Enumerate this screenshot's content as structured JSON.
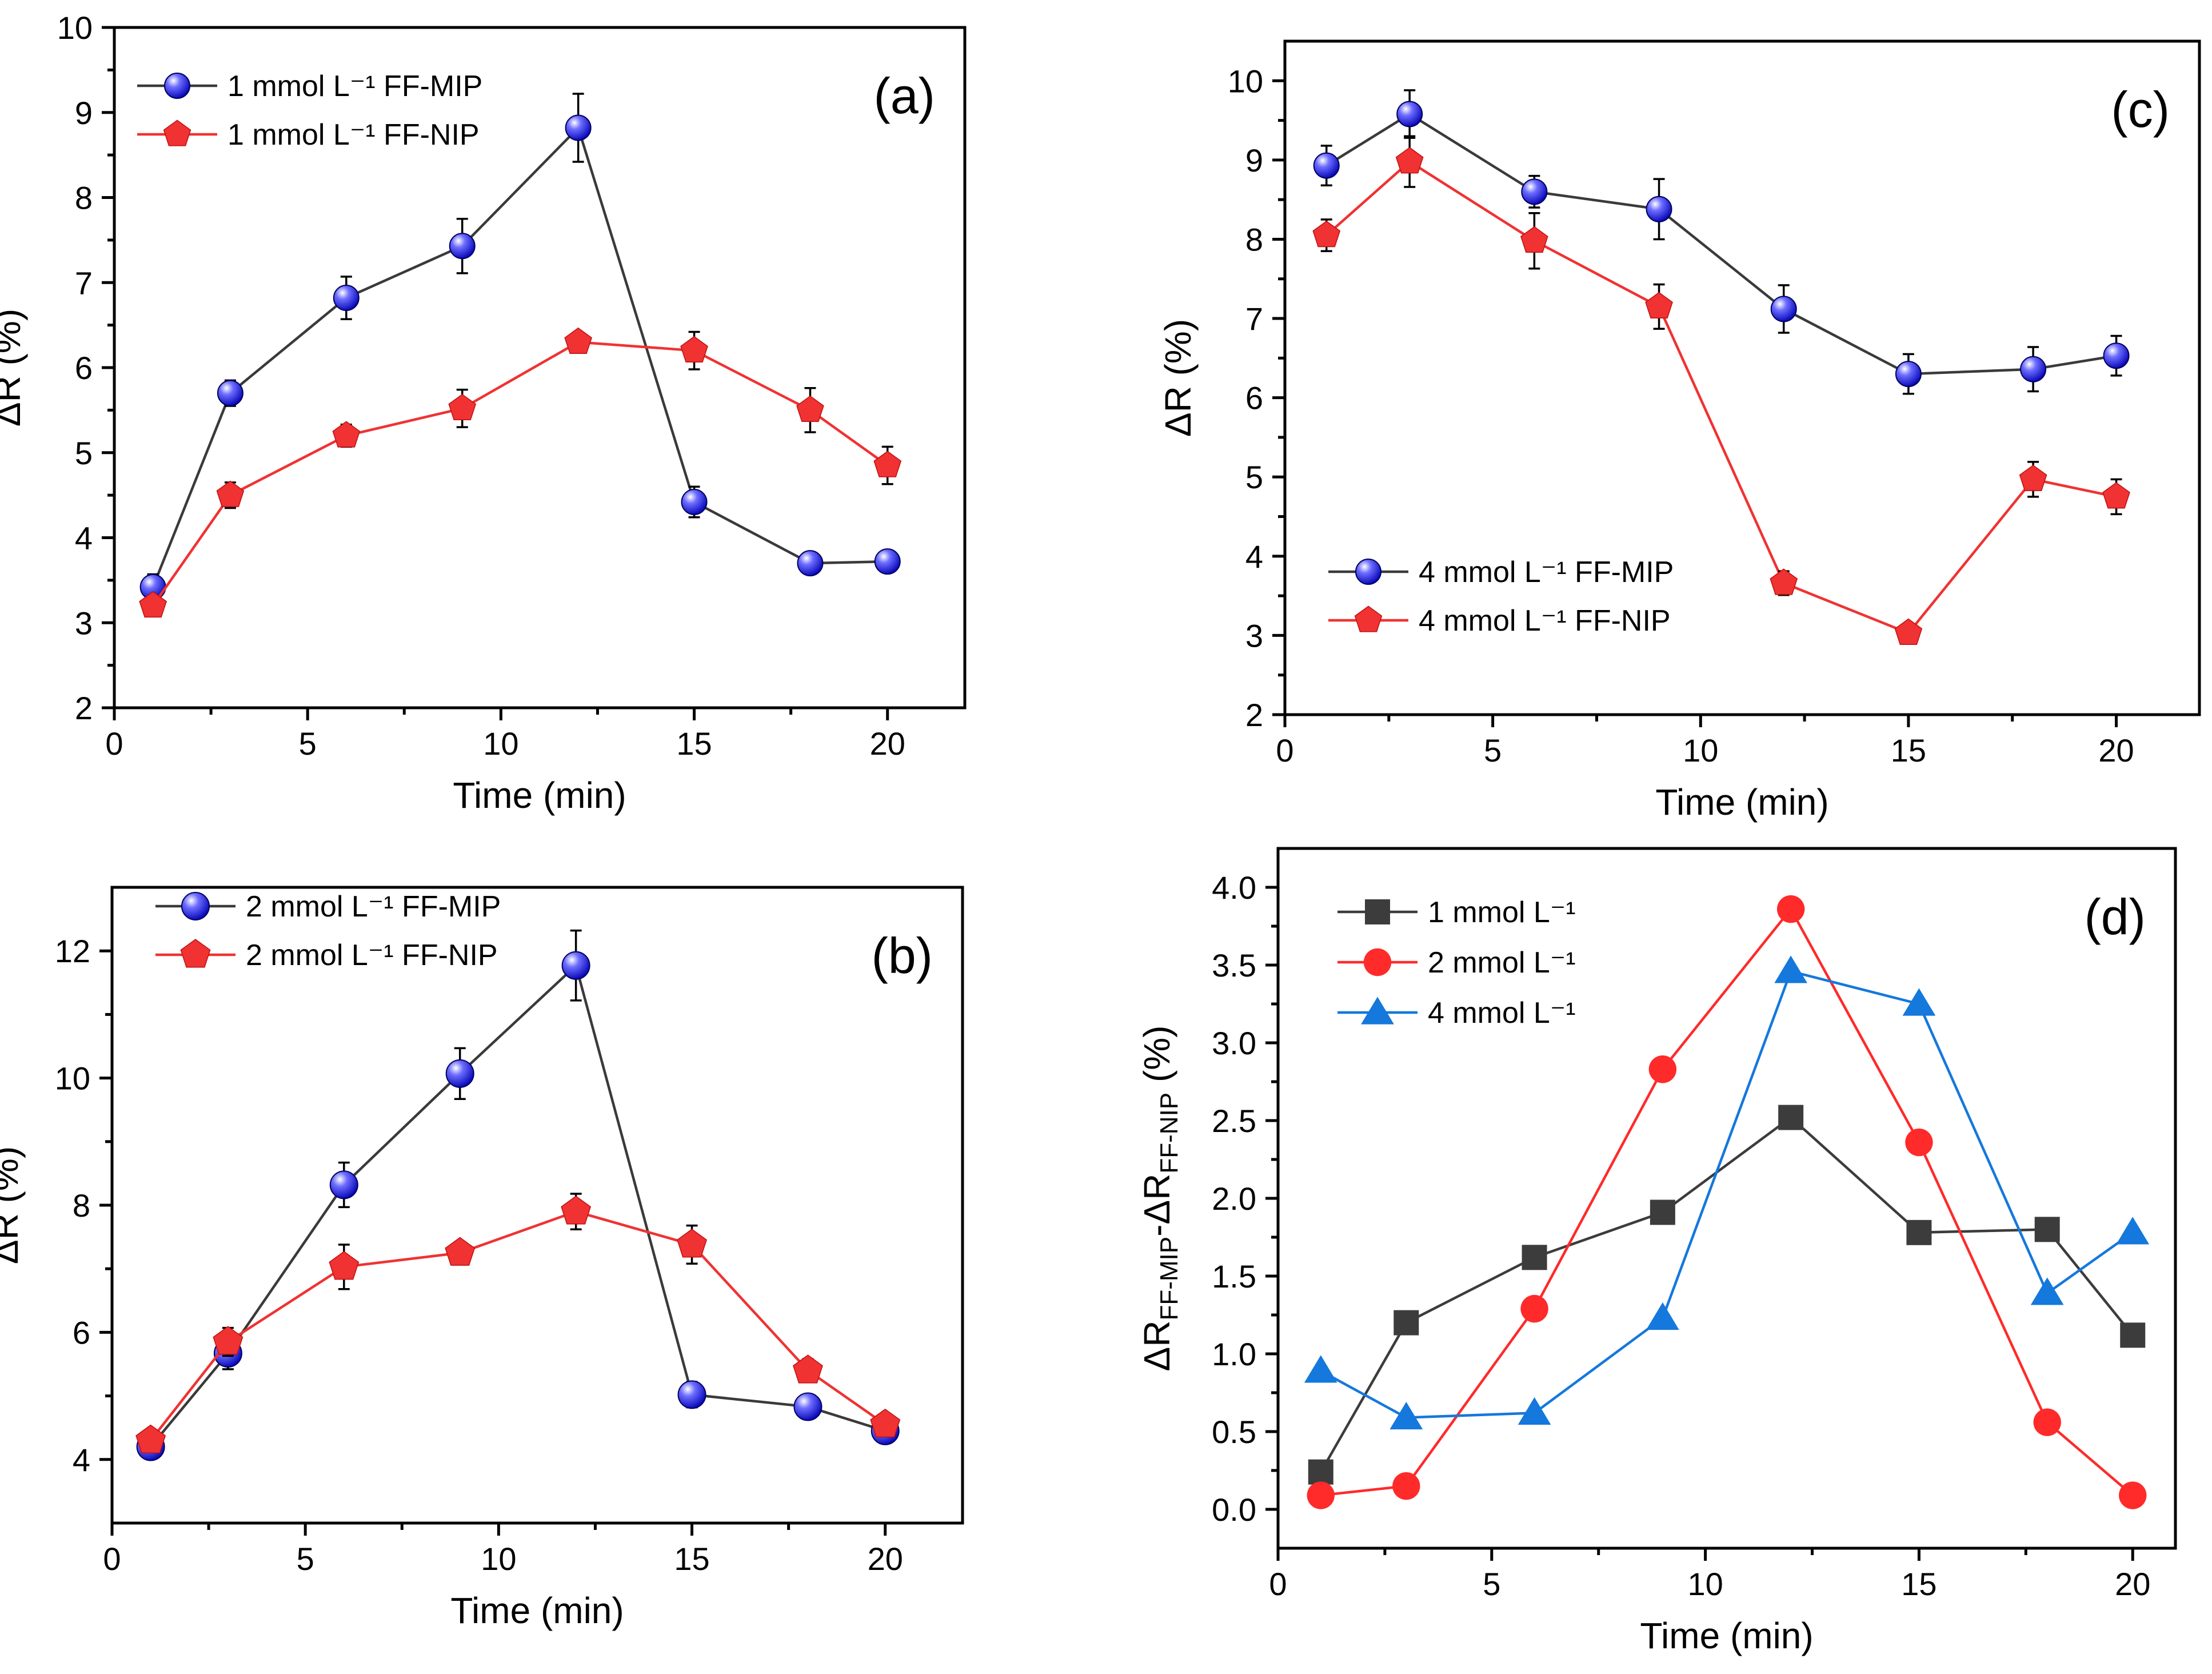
{
  "chart_data": [
    {
      "panel": "(a)",
      "type": "line",
      "xlabel": "Time (min)",
      "ylabel": "ΔR (%)",
      "xlim": [
        0,
        22
      ],
      "ylim": [
        2,
        10
      ],
      "xticks": [
        0,
        5,
        10,
        15,
        20
      ],
      "yticks": [
        2,
        3,
        4,
        5,
        6,
        7,
        8,
        9,
        10
      ],
      "x": [
        1,
        3,
        6,
        9,
        12,
        15,
        18,
        20
      ],
      "series": [
        {
          "name": "1 mmol L⁻¹ FF-MIP",
          "color": "#1414e6",
          "line_color": "#3a3a3a",
          "marker": "sphere",
          "values": [
            3.42,
            5.7,
            6.82,
            7.43,
            8.82,
            4.42,
            3.7,
            3.72
          ],
          "errors": [
            0.15,
            0.15,
            0.25,
            0.32,
            0.4,
            0.18,
            0.08,
            0.1
          ]
        },
        {
          "name": "1 mmol L⁻¹ FF-NIP",
          "color": "#f03232",
          "line_color": "#f03232",
          "marker": "pentagon",
          "values": [
            3.2,
            4.5,
            5.2,
            5.52,
            6.3,
            6.2,
            5.5,
            4.85
          ],
          "errors": [
            0.08,
            0.15,
            0.13,
            0.22,
            0.1,
            0.22,
            0.26,
            0.22
          ]
        }
      ]
    },
    {
      "panel": "(b)",
      "type": "line",
      "xlabel": "Time (min)",
      "ylabel": "ΔR (%)",
      "xlim": [
        0,
        22
      ],
      "ylim": [
        3,
        13
      ],
      "xticks": [
        0,
        5,
        10,
        15,
        20
      ],
      "yticks": [
        4,
        6,
        8,
        10,
        12
      ],
      "x": [
        1,
        3,
        6,
        9,
        12,
        15,
        18,
        20
      ],
      "series": [
        {
          "name": "2 mmol L⁻¹ FF-MIP",
          "color": "#1414e6",
          "line_color": "#3a3a3a",
          "marker": "sphere",
          "values": [
            4.2,
            5.67,
            8.32,
            10.07,
            11.77,
            5.02,
            4.83,
            4.45
          ],
          "errors": [
            0.1,
            0.25,
            0.35,
            0.4,
            0.55,
            0.2,
            0.18,
            0.15
          ]
        },
        {
          "name": "2 mmol L⁻¹ FF-NIP",
          "color": "#f03232",
          "line_color": "#f03232",
          "marker": "pentagon",
          "values": [
            4.3,
            5.85,
            7.03,
            7.25,
            7.9,
            7.38,
            5.4,
            4.55
          ],
          "errors": [
            0.1,
            0.22,
            0.35,
            0.12,
            0.28,
            0.3,
            0.18,
            0.12
          ]
        }
      ]
    },
    {
      "panel": "(c)",
      "type": "line",
      "xlabel": "Time (min)",
      "ylabel": "ΔR (%)",
      "xlim": [
        0,
        22
      ],
      "ylim": [
        2,
        10.5
      ],
      "xticks": [
        0,
        5,
        10,
        15,
        20
      ],
      "yticks": [
        2,
        3,
        4,
        5,
        6,
        7,
        8,
        9,
        10
      ],
      "x": [
        1,
        3,
        6,
        9,
        12,
        15,
        18,
        20
      ],
      "series": [
        {
          "name": "4 mmol L⁻¹ FF-MIP",
          "color": "#1414e6",
          "line_color": "#3a3a3a",
          "marker": "sphere",
          "values": [
            8.93,
            9.58,
            8.6,
            8.38,
            7.12,
            6.3,
            6.36,
            6.53
          ],
          "errors": [
            0.25,
            0.3,
            0.2,
            0.38,
            0.3,
            0.25,
            0.28,
            0.25
          ]
        },
        {
          "name": "4 mmol L⁻¹ FF-NIP",
          "color": "#f03232",
          "line_color": "#f03232",
          "marker": "pentagon",
          "values": [
            8.05,
            8.98,
            7.98,
            7.15,
            3.66,
            3.03,
            4.97,
            4.75
          ],
          "errors": [
            0.2,
            0.32,
            0.35,
            0.28,
            0.15,
            0.12,
            0.22,
            0.22
          ]
        }
      ]
    },
    {
      "panel": "(d)",
      "type": "line",
      "xlabel": "Time (min)",
      "ylabel": "ΔR",
      "ylabel_sub1": "FF-MIP",
      "ylabel_mid": "-ΔR",
      "ylabel_sub2": "FF-NIP",
      "ylabel_tail": " (%)",
      "xlim": [
        0,
        21
      ],
      "ylim": [
        -0.25,
        4.25
      ],
      "xticks": [
        0,
        5,
        10,
        15,
        20
      ],
      "yticks": [
        0.0,
        0.5,
        1.0,
        1.5,
        2.0,
        2.5,
        3.0,
        3.5,
        4.0
      ],
      "ytick_labels": [
        "0.0",
        "0.5",
        "1.0",
        "1.5",
        "2.0",
        "2.5",
        "3.0",
        "3.5",
        "4.0"
      ],
      "x": [
        1,
        3,
        6,
        9,
        12,
        15,
        18,
        20
      ],
      "series": [
        {
          "name": "1 mmol L⁻¹",
          "color": "#3c3c3c",
          "line_color": "#3c3c3c",
          "marker": "square",
          "values": [
            0.24,
            1.2,
            1.62,
            1.91,
            2.52,
            1.78,
            1.8,
            1.12
          ]
        },
        {
          "name": "2 mmol L⁻¹",
          "color": "#ff2a2a",
          "line_color": "#ff2a2a",
          "marker": "circle",
          "values": [
            0.09,
            0.15,
            1.29,
            2.83,
            3.86,
            2.36,
            0.56,
            0.09
          ]
        },
        {
          "name": "4 mmol L⁻¹",
          "color": "#1478dc",
          "line_color": "#1478dc",
          "marker": "triangle",
          "values": [
            0.89,
            0.59,
            0.62,
            1.23,
            3.46,
            3.25,
            1.39,
            1.78
          ]
        }
      ]
    }
  ]
}
